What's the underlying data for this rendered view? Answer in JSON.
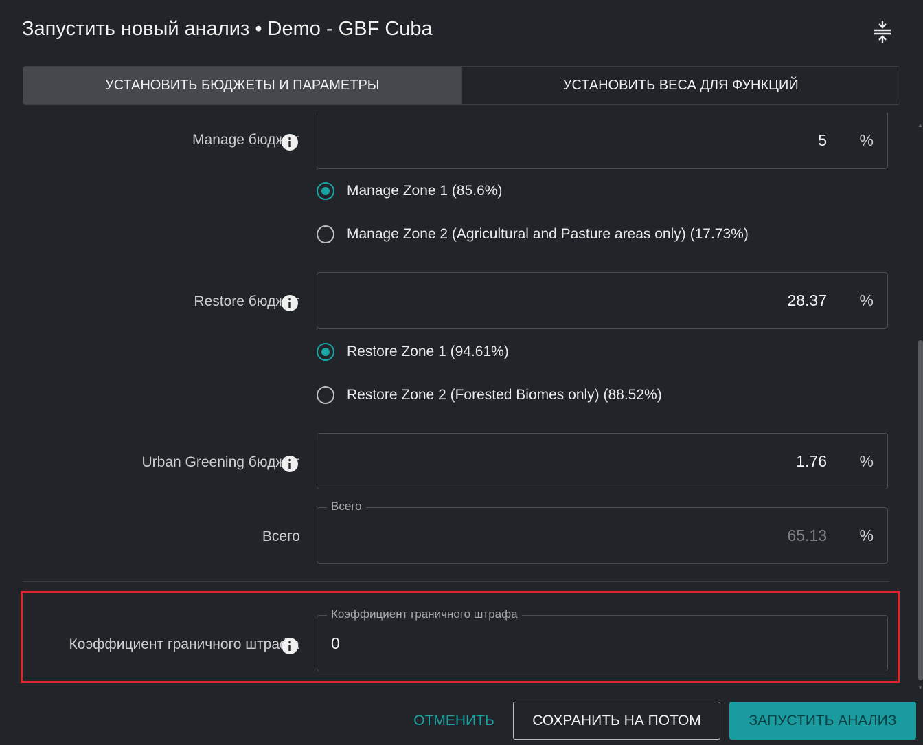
{
  "header": {
    "title": "Запустить новый анализ • Demo - GBF Cuba",
    "collapse_icon": "collapse-vertical-icon"
  },
  "tabs": [
    {
      "label": "УСТАНОВИТЬ БЮДЖЕТЫ И ПАРАМЕТРЫ",
      "active": true
    },
    {
      "label": "УСТАНОВИТЬ ВЕСА ДЛЯ ФУНКЦИЙ",
      "active": false
    }
  ],
  "manage": {
    "label": "Manage бюджет",
    "value": "5",
    "unit": "%",
    "zones": [
      {
        "label": "Manage Zone 1 (85.6%)",
        "checked": true
      },
      {
        "label": "Manage Zone 2 (Agricultural and Pasture areas only) (17.73%)",
        "checked": false
      }
    ]
  },
  "restore": {
    "label": "Restore бюджет",
    "value": "28.37",
    "unit": "%",
    "zones": [
      {
        "label": "Restore Zone 1 (94.61%)",
        "checked": true
      },
      {
        "label": "Restore Zone 2 (Forested Biomes only) (88.52%)",
        "checked": false
      }
    ]
  },
  "urban": {
    "label": "Urban Greening бюджет",
    "value": "1.76",
    "unit": "%"
  },
  "total": {
    "label": "Всего",
    "legend": "Всего",
    "value": "65.13",
    "unit": "%"
  },
  "boundary": {
    "label": "Коэффициент граничного штрафа",
    "legend": "Коэффициент граничного штрафа",
    "value": "0"
  },
  "footer": {
    "cancel": "ОТМЕНИТЬ",
    "save": "СОХРАНИТЬ НА ПОТОМ",
    "run": "ЗАПУСТИТЬ АНАЛИЗ"
  },
  "colors": {
    "accent": "#1aa5a5",
    "highlight": "#e0262d",
    "background": "#212428"
  }
}
